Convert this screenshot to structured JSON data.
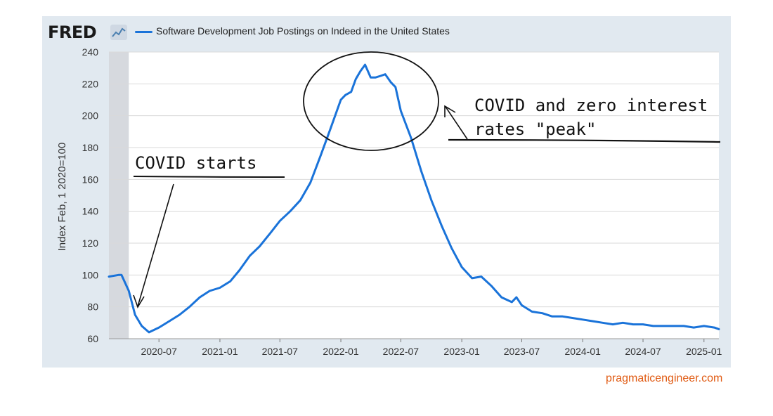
{
  "header": {
    "logo_text": "FRED",
    "logo_icon": "chart-line-icon",
    "legend_label": "Software Development Job Postings on Indeed in the United States",
    "line_color": "#1a73d9"
  },
  "source_credit": "pragmaticengineer.com",
  "colors": {
    "panel": "#e1e9f0",
    "accent": "#e05a12",
    "line": "#1a73d9"
  },
  "annotations": {
    "covid_starts": "COVID starts",
    "peak_line1": "COVID and zero interest",
    "peak_line2": "rates \"peak\""
  },
  "chart_data": {
    "type": "line",
    "title": "",
    "ylabel": "Index Feb, 1 2020=100",
    "xlabel": "",
    "ylim": [
      60,
      240
    ],
    "yticks": [
      60,
      80,
      100,
      120,
      140,
      160,
      180,
      200,
      220,
      240
    ],
    "xlim": [
      "2020-02-01",
      "2025-02-15"
    ],
    "xticks": [
      "2020-07",
      "2021-01",
      "2021-07",
      "2022-01",
      "2022-07",
      "2023-01",
      "2023-07",
      "2024-01",
      "2024-07",
      "2025-01"
    ],
    "grid": true,
    "shaded_region": {
      "from": "2020-02-01",
      "to": "2020-04-01"
    },
    "legend_position": "top-left",
    "series": [
      {
        "name": "Software Development Job Postings on Indeed in the United States",
        "x": [
          "2020-02-01",
          "2020-03-01",
          "2020-03-10",
          "2020-04-01",
          "2020-04-20",
          "2020-05-10",
          "2020-06-01",
          "2020-07-01",
          "2020-08-01",
          "2020-09-01",
          "2020-10-01",
          "2020-11-01",
          "2020-12-01",
          "2021-01-01",
          "2021-02-01",
          "2021-03-01",
          "2021-04-01",
          "2021-05-01",
          "2021-06-01",
          "2021-07-01",
          "2021-08-01",
          "2021-09-01",
          "2021-10-01",
          "2021-11-01",
          "2021-12-01",
          "2022-01-01",
          "2022-01-15",
          "2022-02-01",
          "2022-02-15",
          "2022-03-01",
          "2022-03-15",
          "2022-04-01",
          "2022-04-15",
          "2022-05-01",
          "2022-05-15",
          "2022-06-01",
          "2022-06-15",
          "2022-07-01",
          "2022-08-01",
          "2022-09-01",
          "2022-10-01",
          "2022-11-01",
          "2022-12-01",
          "2023-01-01",
          "2023-02-01",
          "2023-03-01",
          "2023-04-01",
          "2023-05-01",
          "2023-06-01",
          "2023-06-15",
          "2023-07-01",
          "2023-08-01",
          "2023-09-01",
          "2023-10-01",
          "2023-11-01",
          "2023-12-01",
          "2024-01-01",
          "2024-02-01",
          "2024-03-01",
          "2024-04-01",
          "2024-05-01",
          "2024-06-01",
          "2024-07-01",
          "2024-08-01",
          "2024-09-01",
          "2024-10-01",
          "2024-11-01",
          "2024-12-01",
          "2025-01-01",
          "2025-02-01",
          "2025-02-15"
        ],
        "values": [
          99,
          100,
          100,
          90,
          75,
          68,
          64,
          67,
          71,
          75,
          80,
          86,
          90,
          92,
          96,
          103,
          112,
          118,
          126,
          134,
          140,
          147,
          158,
          175,
          192,
          210,
          213,
          215,
          223,
          228,
          232,
          224,
          224,
          225,
          226,
          221,
          218,
          203,
          186,
          165,
          147,
          131,
          117,
          105,
          98,
          99,
          93,
          86,
          83,
          86,
          81,
          77,
          76,
          74,
          74,
          73,
          72,
          71,
          70,
          69,
          70,
          69,
          69,
          68,
          68,
          68,
          68,
          67,
          68,
          67,
          66
        ]
      }
    ]
  }
}
